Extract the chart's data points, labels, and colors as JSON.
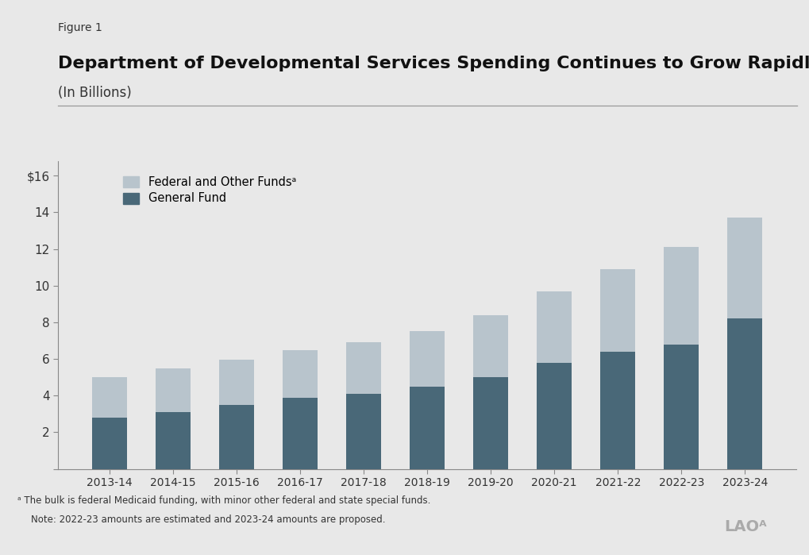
{
  "categories": [
    "2013-14",
    "2014-15",
    "2015-16",
    "2016-17",
    "2017-18",
    "2018-19",
    "2019-20",
    "2020-21",
    "2021-22",
    "2022-23",
    "2023-24"
  ],
  "general_fund": [
    2.8,
    3.1,
    3.5,
    3.9,
    4.1,
    4.5,
    5.0,
    5.8,
    6.4,
    6.8,
    8.2
  ],
  "federal_other": [
    2.2,
    2.4,
    2.45,
    2.6,
    2.8,
    3.0,
    3.4,
    3.9,
    4.5,
    5.3,
    5.5
  ],
  "general_fund_color": "#496878",
  "federal_other_color": "#b8c4cc",
  "background_color": "#e8e8e8",
  "fig_label": "Figure 1",
  "title": "Department of Developmental Services Spending Continues to Grow Rapidly",
  "subtitle": "(In Billions)",
  "legend_federal": "Federal and Other Fundsᵃ",
  "legend_general": "General Fund",
  "yticks": [
    0,
    2,
    4,
    6,
    8,
    10,
    12,
    14,
    16
  ],
  "ytick_labels": [
    "",
    "2",
    "4",
    "6",
    "8",
    "10",
    "12",
    "14",
    "$16"
  ],
  "ylim": [
    0,
    16.8
  ],
  "footnote_a": "ᵃ The bulk is federal Medicaid funding, with minor other federal and state special funds.",
  "footnote_note": "Note: 2022-23 amounts are estimated and 2023-24 amounts are proposed.",
  "lao_logo": "LAOᴬ",
  "bar_width": 0.55
}
